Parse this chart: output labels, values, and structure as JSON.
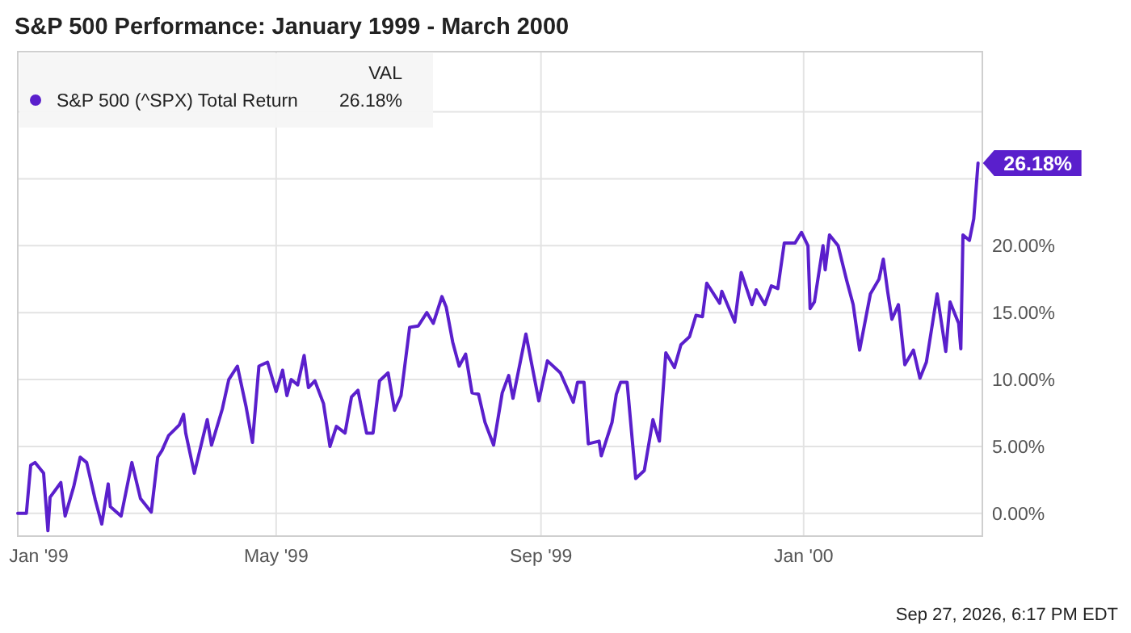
{
  "chart_data": {
    "type": "line",
    "title": "S&P 500 Performance: January 1999 - March 2000",
    "x": [
      "1999-01-01",
      "1999-01-05",
      "1999-01-07",
      "1999-01-09",
      "1999-01-13",
      "1999-01-15",
      "1999-01-16",
      "1999-01-21",
      "1999-01-23",
      "1999-01-27",
      "1999-01-30",
      "1999-02-02",
      "1999-02-06",
      "1999-02-09",
      "1999-02-12",
      "1999-02-13",
      "1999-02-18",
      "1999-02-23",
      "1999-02-27",
      "1999-03-04",
      "1999-03-07",
      "1999-03-09",
      "1999-03-12",
      "1999-03-17",
      "1999-03-19",
      "1999-03-20",
      "1999-03-24",
      "1999-03-30",
      "1999-04-01",
      "1999-04-06",
      "1999-04-09",
      "1999-04-13",
      "1999-04-17",
      "1999-04-20",
      "1999-04-23",
      "1999-04-27",
      "1999-05-01",
      "1999-05-04",
      "1999-05-06",
      "1999-05-08",
      "1999-05-11",
      "1999-05-14",
      "1999-05-16",
      "1999-05-19",
      "1999-05-23",
      "1999-05-26",
      "1999-05-29",
      "1999-06-02",
      "1999-06-05",
      "1999-06-08",
      "1999-06-12",
      "1999-06-15",
      "1999-06-18",
      "1999-06-22",
      "1999-06-25",
      "1999-06-28",
      "1999-07-02",
      "1999-07-06",
      "1999-07-10",
      "1999-07-13",
      "1999-07-17",
      "1999-07-19",
      "1999-07-22",
      "1999-07-25",
      "1999-07-28",
      "1999-07-31",
      "1999-08-03",
      "1999-08-06",
      "1999-08-10",
      "1999-08-14",
      "1999-08-17",
      "1999-08-19",
      "1999-08-25",
      "1999-08-31",
      "1999-09-04",
      "1999-09-10",
      "1999-09-16",
      "1999-09-18",
      "1999-09-21",
      "1999-09-23",
      "1999-09-28",
      "1999-09-29",
      "1999-10-04",
      "1999-10-06",
      "1999-10-08",
      "1999-10-11",
      "1999-10-15",
      "1999-10-19",
      "1999-10-23",
      "1999-10-26",
      "1999-10-29",
      "1999-11-02",
      "1999-11-05",
      "1999-11-09",
      "1999-11-12",
      "1999-11-15",
      "1999-11-17",
      "1999-11-23",
      "1999-11-24",
      "1999-11-30",
      "1999-12-03",
      "1999-12-08",
      "1999-12-10",
      "1999-12-14",
      "1999-12-17",
      "1999-12-20",
      "1999-12-23",
      "1999-12-28",
      "1999-12-31",
      "2000-01-03",
      "2000-01-04",
      "2000-01-06",
      "2000-01-10",
      "2000-01-11",
      "2000-01-13",
      "2000-01-17",
      "2000-01-21",
      "2000-01-24",
      "2000-01-27",
      "2000-02-01",
      "2000-02-05",
      "2000-02-07",
      "2000-02-09",
      "2000-02-11",
      "2000-02-14",
      "2000-02-17",
      "2000-02-21",
      "2000-02-24",
      "2000-02-27",
      "2000-03-03",
      "2000-03-07",
      "2000-03-09",
      "2000-03-13",
      "2000-03-14",
      "2000-03-15",
      "2000-03-18",
      "2000-03-20",
      "2000-03-22"
    ],
    "series": [
      {
        "name": "S&P 500 (^SPX) Total Return",
        "color": "#5a1fcc",
        "values": [
          0,
          0,
          3.6,
          3.8,
          3.0,
          -1.3,
          1.2,
          2.3,
          -0.2,
          2.0,
          4.2,
          3.8,
          1.0,
          -0.8,
          2.2,
          0.5,
          -0.2,
          3.8,
          1.1,
          0.1,
          4.2,
          4.7,
          5.8,
          6.6,
          7.4,
          6.0,
          3.0,
          7.0,
          5.1,
          7.8,
          10.0,
          11.0,
          8.0,
          5.3,
          11.0,
          11.3,
          9.1,
          10.7,
          8.8,
          10.0,
          9.6,
          11.8,
          9.4,
          9.9,
          8.2,
          5.0,
          6.5,
          6.0,
          8.7,
          9.2,
          6.0,
          6.0,
          9.9,
          10.5,
          7.7,
          8.8,
          13.9,
          14.0,
          15.0,
          14.2,
          16.2,
          15.4,
          12.8,
          11.0,
          11.9,
          9.0,
          8.9,
          6.8,
          5.1,
          9.0,
          10.3,
          8.6,
          13.4,
          8.4,
          11.4,
          10.5,
          8.3,
          9.8,
          9.8,
          5.2,
          5.4,
          4.3,
          6.8,
          8.9,
          9.8,
          9.8,
          2.6,
          3.2,
          7.0,
          5.4,
          12.0,
          10.9,
          12.6,
          13.2,
          14.8,
          14.7,
          17.2,
          15.7,
          16.6,
          14.3,
          18.0,
          15.6,
          16.7,
          15.6,
          17.0,
          16.8,
          20.2,
          20.2,
          21.0,
          20.0,
          15.3,
          15.8,
          20.0,
          18.2,
          20.8,
          20.0,
          17.4,
          15.6,
          12.2,
          16.4,
          17.5,
          19.0,
          16.6,
          14.5,
          15.6,
          11.1,
          12.2,
          10.1,
          11.3,
          16.4,
          12.1,
          15.8,
          14.2,
          12.3,
          20.8,
          20.4,
          22.0,
          26.18
        ]
      }
    ],
    "value_labels": [
      null,
      null,
      null,
      null,
      null,
      null,
      null,
      null,
      null,
      null,
      null,
      null,
      null,
      null,
      null,
      null,
      null,
      null,
      null,
      null,
      null,
      null,
      null,
      null,
      null,
      null,
      null,
      null,
      null,
      null,
      null,
      null,
      null,
      null,
      null,
      null,
      null,
      null,
      null,
      null,
      null,
      null,
      null,
      null,
      null,
      null,
      null,
      null,
      null,
      null,
      null,
      null,
      null,
      null,
      null,
      null,
      null,
      null,
      null,
      null,
      null,
      null,
      null,
      null,
      null,
      null,
      null,
      null,
      null,
      null,
      null,
      null,
      null,
      null,
      null,
      null,
      null,
      null,
      null,
      null,
      null,
      null,
      null,
      null,
      null,
      null,
      null,
      null,
      null,
      null,
      null,
      null,
      null,
      null,
      null,
      null,
      null,
      null,
      null,
      null,
      null,
      null,
      null,
      null,
      null,
      null,
      null,
      null,
      null,
      null,
      null,
      null,
      null,
      null,
      null,
      null,
      null,
      null,
      null,
      null,
      null,
      null,
      null,
      null,
      null,
      null,
      null,
      null,
      null,
      null,
      null,
      null,
      null,
      null,
      null,
      null,
      null,
      "26.18%"
    ],
    "xlim": [
      "1999-01-01",
      "2000-03-24"
    ],
    "xticks": [
      {
        "value": "1999-01-01",
        "label": "Jan '99"
      },
      {
        "value": "1999-05-01",
        "label": "May '99"
      },
      {
        "value": "1999-09-01",
        "label": "Sep '99"
      },
      {
        "value": "2000-01-01",
        "label": "Jan '00"
      }
    ],
    "ylim": [
      -1.7,
      34.5
    ],
    "yticks": [
      {
        "value": 0,
        "label": "0.00%"
      },
      {
        "value": 5,
        "label": "5.00%"
      },
      {
        "value": 10,
        "label": "10.00%"
      },
      {
        "value": 15,
        "label": "15.00%"
      },
      {
        "value": 20,
        "label": "20.00%"
      },
      {
        "value": 25,
        "label": null
      },
      {
        "value": 30,
        "label": null
      }
    ],
    "grid": true,
    "legend": "top left",
    "legend_title": "VAL",
    "annotations": [
      "26.18%",
      "Sep 27, 2026, 6:17 PM EDT"
    ]
  }
}
